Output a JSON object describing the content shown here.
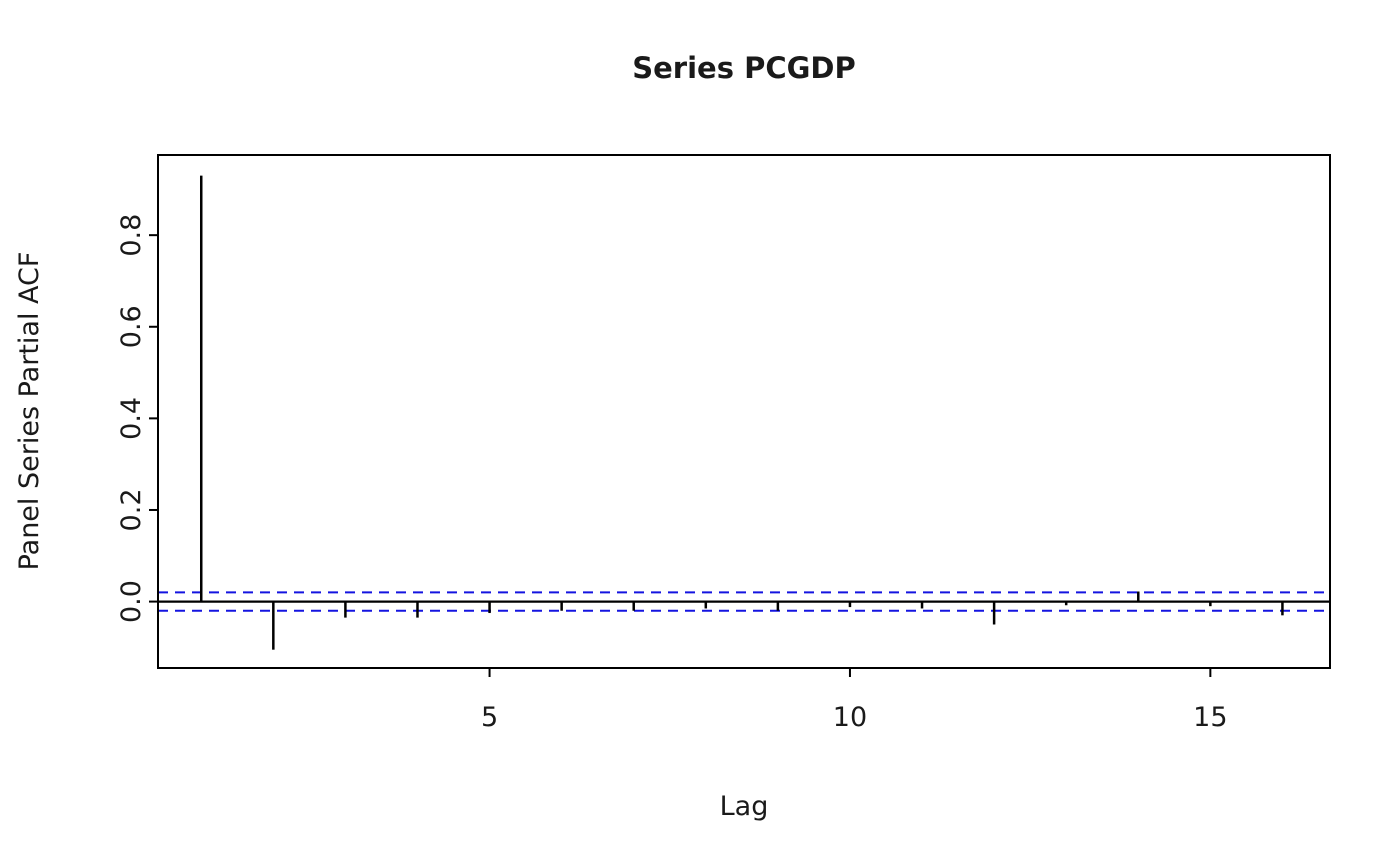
{
  "title": "Series PCGDP",
  "xlabel": "Lag",
  "ylabel": "Panel Series Partial ACF",
  "chart_data": {
    "type": "bar",
    "subtype": "pacf-spike-plot",
    "x": [
      1,
      2,
      3,
      4,
      5,
      6,
      7,
      8,
      9,
      10,
      11,
      12,
      13,
      14,
      15,
      16
    ],
    "values": [
      0.93,
      -0.105,
      -0.035,
      -0.035,
      -0.025,
      -0.02,
      -0.02,
      -0.015,
      -0.02,
      -0.012,
      -0.015,
      -0.05,
      -0.008,
      0.022,
      -0.01,
      -0.03
    ],
    "xticks": [
      5,
      10,
      15
    ],
    "yticks": [
      0.0,
      0.2,
      0.4,
      0.6,
      0.8
    ],
    "xlim": [
      0.4,
      16.66
    ],
    "ylim": [
      -0.145,
      0.975
    ],
    "zero_line": 0,
    "conf_band": 0.02,
    "colors": {
      "spike": "#000000",
      "zero_line": "#000000",
      "conf_band": "#1414e0",
      "box": "#000000"
    },
    "grid": false,
    "legend": "none"
  }
}
